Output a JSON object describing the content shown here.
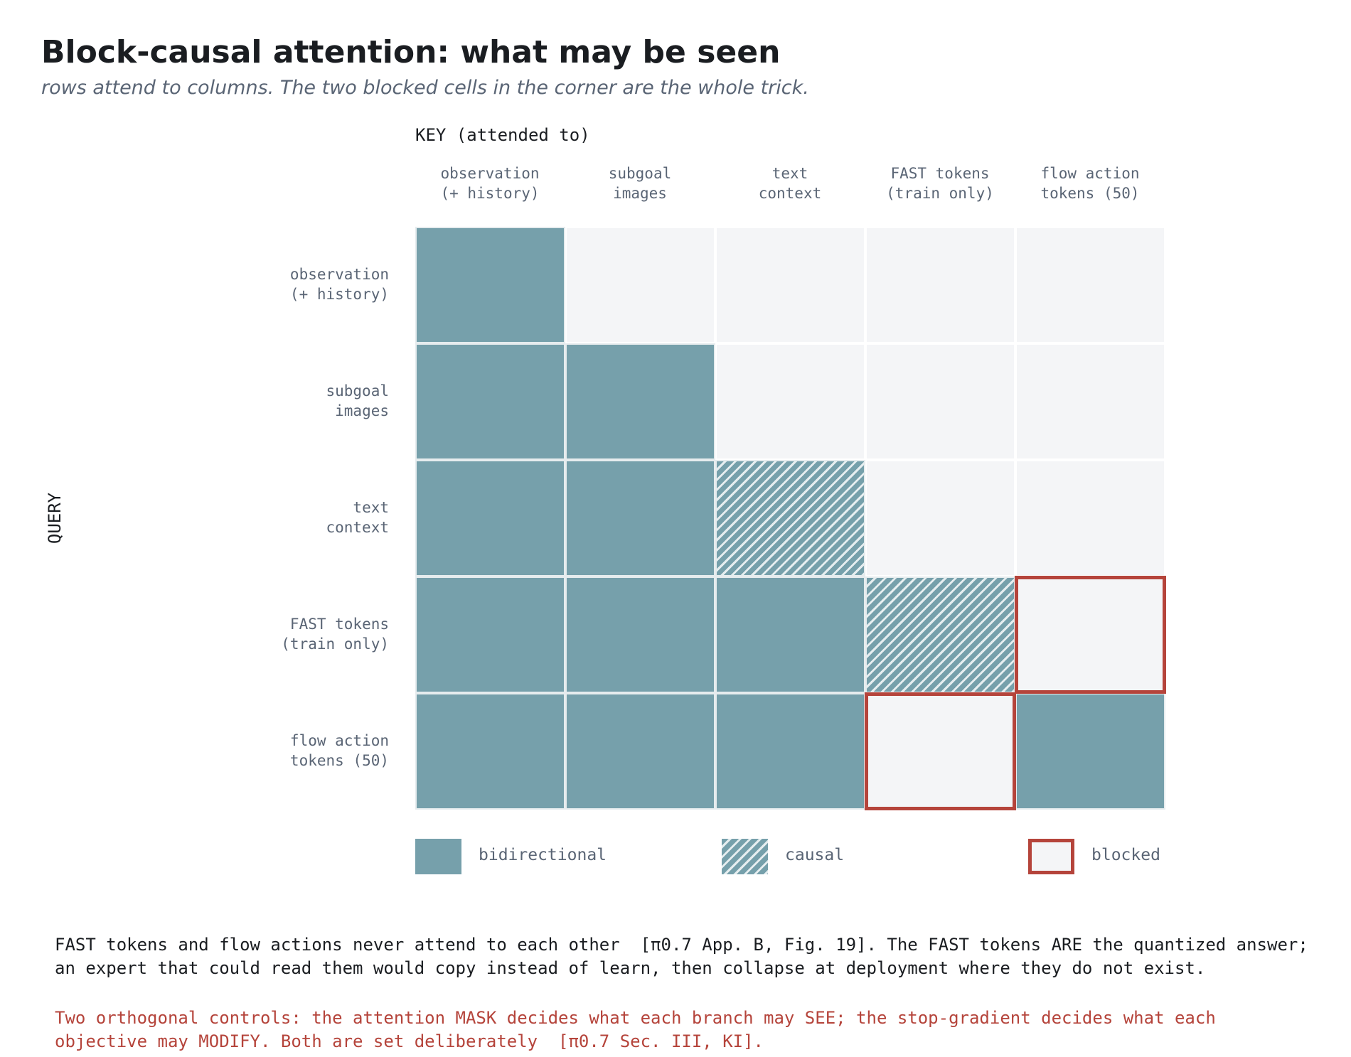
{
  "title": "Block-causal attention: what may be seen",
  "subtitle": "rows attend to columns. The two blocked cells in the corner are the whole trick.",
  "axes": {
    "key_label": "KEY (attended to)",
    "query_label": "QUERY"
  },
  "columns": [
    "observation\n(+ history)",
    "subgoal\nimages",
    "text\ncontext",
    "FAST tokens\n(train only)",
    "flow action\ntokens (50)"
  ],
  "rows": [
    "observation\n(+ history)",
    "subgoal\nimages",
    "text\ncontext",
    "FAST tokens\n(train only)",
    "flow action\ntokens (50)"
  ],
  "matrix": [
    [
      "bidirectional",
      "empty",
      "empty",
      "empty",
      "empty"
    ],
    [
      "bidirectional",
      "bidirectional",
      "empty",
      "empty",
      "empty"
    ],
    [
      "bidirectional",
      "bidirectional",
      "causal",
      "empty",
      "empty"
    ],
    [
      "bidirectional",
      "bidirectional",
      "bidirectional",
      "causal",
      "blocked"
    ],
    [
      "bidirectional",
      "bidirectional",
      "bidirectional",
      "blocked",
      "bidirectional"
    ]
  ],
  "legend": {
    "bidirectional": "bidirectional",
    "causal": "causal",
    "blocked": "blocked"
  },
  "colors": {
    "attended": "#76a0ab",
    "empty": "#f4f5f7",
    "blocked_border": "#b5443b",
    "note_red": "#b5443b"
  },
  "notes": {
    "line1": "FAST tokens and flow actions never attend to each other  [π0.7 App. B, Fig. 19]. The FAST tokens ARE the quantized answer;",
    "line2": "an expert that could read them would copy instead of learn, then collapse at deployment where they do not exist.",
    "line3": "Two orthogonal controls: the attention MASK decides what each branch may SEE; the stop-gradient decides what each",
    "line4": "objective may MODIFY. Both are set deliberately  [π0.7 Sec. III, KI]."
  }
}
